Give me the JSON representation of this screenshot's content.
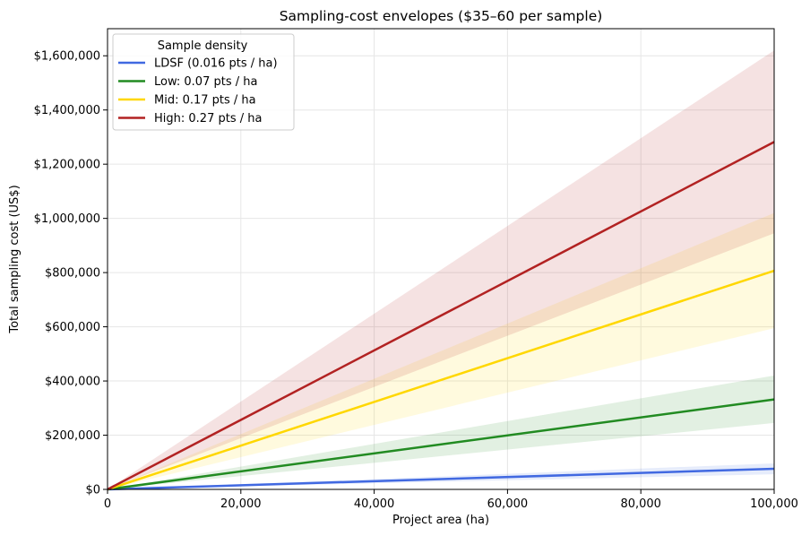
{
  "chart_data": {
    "type": "line",
    "title": "Sampling-cost envelopes ($35–60 per sample)",
    "xlabel": "Project area (ha)",
    "ylabel": "Total sampling cost (US$)",
    "xlim": [
      0,
      100000
    ],
    "ylim": [
      0,
      1700000
    ],
    "x_ticks": [
      0,
      20000,
      40000,
      60000,
      80000,
      100000
    ],
    "x_tick_labels": [
      "0",
      "20,000",
      "40,000",
      "60,000",
      "80,000",
      "100,000"
    ],
    "y_ticks": [
      0,
      200000,
      400000,
      600000,
      800000,
      1000000,
      1200000,
      1400000,
      1600000
    ],
    "y_tick_labels": [
      "$0",
      "$200,000",
      "$400,000",
      "$600,000",
      "$800,000",
      "$1,000,000",
      "$1,200,000",
      "$1,400,000",
      "$1,600,000"
    ],
    "grid": true,
    "legend": {
      "title": "Sample density",
      "position": "top-left"
    },
    "x": [
      0,
      100000
    ],
    "series": [
      {
        "name": "LDSF (0.016 pts / ha)",
        "color": "#4169e1",
        "values": [
          0,
          76000
        ],
        "band_lower": [
          0,
          56000
        ],
        "band_upper": [
          0,
          96000
        ]
      },
      {
        "name": "Low: 0.07 pts / ha",
        "color": "#228b22",
        "values": [
          0,
          332000
        ],
        "band_lower": [
          0,
          245000
        ],
        "band_upper": [
          0,
          420000
        ]
      },
      {
        "name": "Mid: 0.17 pts / ha",
        "color": "#ffd700",
        "values": [
          0,
          807000
        ],
        "band_lower": [
          0,
          595000
        ],
        "band_upper": [
          0,
          1020000
        ]
      },
      {
        "name": "High: 0.27 pts / ha",
        "color": "#b22222",
        "values": [
          0,
          1282000
        ],
        "band_lower": [
          0,
          945000
        ],
        "band_upper": [
          0,
          1620000
        ]
      }
    ]
  }
}
